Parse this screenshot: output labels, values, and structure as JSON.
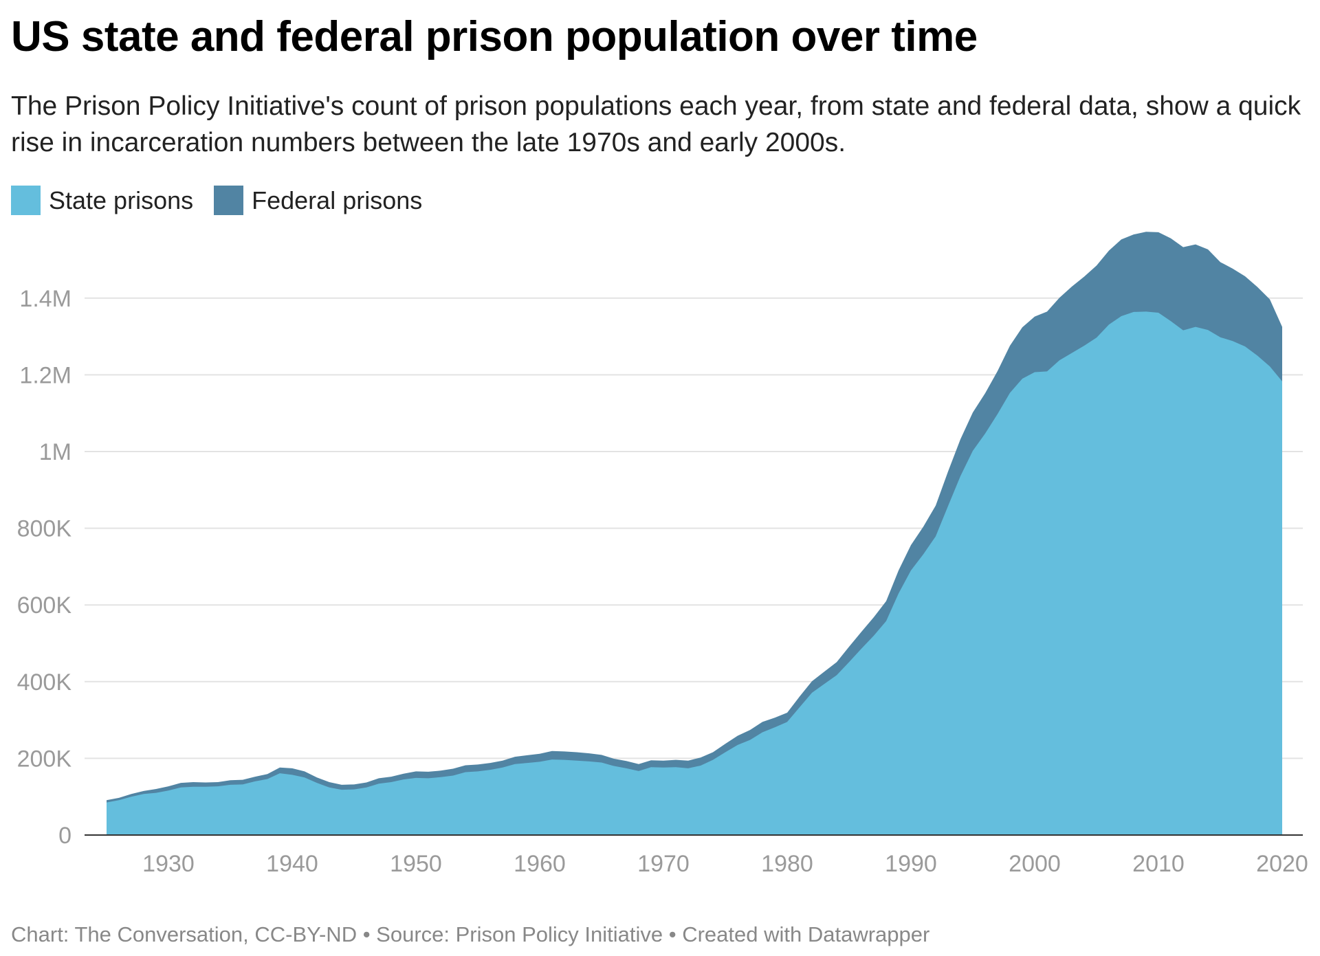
{
  "title": "US state and federal prison population over time",
  "subtitle": "The Prison Policy Initiative's count of prison populations each year, from state and federal data, show a quick rise in incarceration numbers between the late 1970s and early 2000s.",
  "footer": "Chart: The Conversation, CC-BY-ND • Source: Prison Policy Initiative • Created with Datawrapper",
  "colors": {
    "state": "#64bedd",
    "federal": "#5184a3",
    "grid": "#e3e3e3",
    "axis_text": "#9a9a9a"
  },
  "chart_data": {
    "type": "area",
    "stacked": true,
    "title": "US state and federal prison population over time",
    "legend_position": "top-left",
    "grid": true,
    "xlim": [
      1925,
      2020
    ],
    "ylim": [
      0,
      1560000
    ],
    "x_ticks": [
      1930,
      1940,
      1950,
      1960,
      1970,
      1980,
      1990,
      2000,
      2010,
      2020
    ],
    "x_tick_labels": [
      "1930",
      "1940",
      "1950",
      "1960",
      "1970",
      "1980",
      "1990",
      "2000",
      "2010",
      "2020"
    ],
    "y_ticks": [
      0,
      200000,
      400000,
      600000,
      800000,
      1000000,
      1200000,
      1400000
    ],
    "y_tick_labels": [
      "0",
      "200K",
      "400K",
      "600K",
      "800K",
      "1M",
      "1.2M",
      "1.4M"
    ],
    "x": [
      1925,
      1926,
      1927,
      1928,
      1929,
      1930,
      1931,
      1932,
      1933,
      1934,
      1935,
      1936,
      1937,
      1938,
      1939,
      1940,
      1941,
      1942,
      1943,
      1944,
      1945,
      1946,
      1947,
      1948,
      1949,
      1950,
      1951,
      1952,
      1953,
      1954,
      1955,
      1956,
      1957,
      1958,
      1959,
      1960,
      1961,
      1962,
      1963,
      1964,
      1965,
      1966,
      1967,
      1968,
      1969,
      1970,
      1971,
      1972,
      1973,
      1974,
      1975,
      1976,
      1977,
      1978,
      1979,
      1980,
      1981,
      1982,
      1983,
      1984,
      1985,
      1986,
      1987,
      1988,
      1989,
      1990,
      1991,
      1992,
      1993,
      1994,
      1995,
      1996,
      1997,
      1998,
      1999,
      2000,
      2001,
      2002,
      2003,
      2004,
      2005,
      2006,
      2007,
      2008,
      2009,
      2010,
      2011,
      2012,
      2013,
      2014,
      2015,
      2016,
      2017,
      2018,
      2019,
      2020
    ],
    "series": [
      {
        "name": "State prisons",
        "values": [
          85000,
          91000,
          100000,
          107000,
          110000,
          116000,
          124000,
          126000,
          126000,
          127000,
          131000,
          132000,
          140000,
          146000,
          161000,
          157000,
          150000,
          136000,
          124000,
          118000,
          119000,
          124000,
          134000,
          138000,
          145000,
          149000,
          148000,
          151000,
          155000,
          164000,
          166000,
          170000,
          176000,
          185000,
          188000,
          191000,
          197000,
          196000,
          194000,
          192000,
          189000,
          180000,
          174000,
          167000,
          177000,
          176000,
          177000,
          174000,
          181000,
          196000,
          216000,
          235000,
          248000,
          268000,
          281000,
          295000,
          333000,
          371000,
          394000,
          417000,
          451000,
          486000,
          520000,
          558000,
          630000,
          690000,
          732000,
          779000,
          858000,
          936000,
          1002000,
          1047000,
          1098000,
          1153000,
          1190000,
          1207000,
          1209000,
          1238000,
          1257000,
          1276000,
          1297000,
          1331000,
          1353000,
          1364000,
          1365000,
          1362000,
          1340000,
          1316000,
          1325000,
          1317000,
          1298000,
          1288000,
          1274000,
          1250000,
          1222000,
          1183000
        ]
      },
      {
        "name": "Federal prisons",
        "values": [
          6000,
          6000,
          7000,
          8000,
          10000,
          11000,
          12000,
          12000,
          11000,
          11000,
          12000,
          12000,
          12000,
          13000,
          15000,
          17000,
          16000,
          14000,
          14000,
          13000,
          13000,
          13000,
          14000,
          14000,
          15000,
          17000,
          17000,
          17000,
          18000,
          18000,
          18000,
          18000,
          18000,
          19000,
          20000,
          21000,
          22000,
          22000,
          22000,
          21000,
          20000,
          19000,
          19000,
          18000,
          18000,
          18000,
          19000,
          20000,
          21000,
          20000,
          22000,
          24000,
          26000,
          27000,
          25000,
          24000,
          28000,
          30000,
          32000,
          34000,
          40000,
          44000,
          48000,
          52000,
          60000,
          66000,
          72000,
          80000,
          90000,
          96000,
          100000,
          105000,
          112000,
          123000,
          134000,
          145000,
          156000,
          163000,
          173000,
          180000,
          188000,
          193000,
          200000,
          202000,
          208000,
          210000,
          216000,
          217000,
          215000,
          210000,
          196000,
          189000,
          183000,
          179000,
          175000,
          142000
        ]
      }
    ]
  }
}
